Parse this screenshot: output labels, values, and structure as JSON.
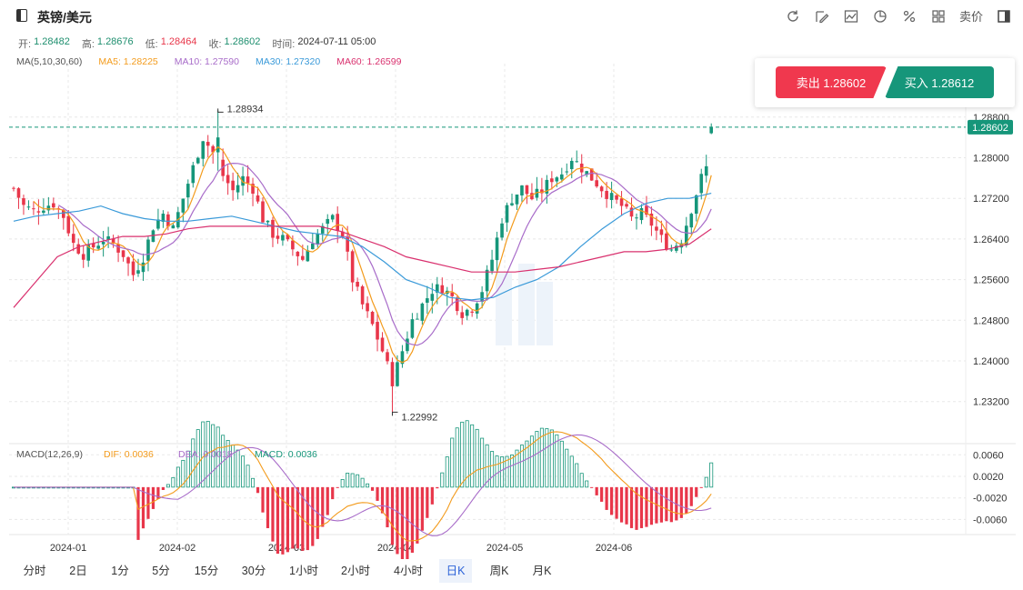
{
  "header": {
    "symbol": "英镑/美元",
    "ohlc": {
      "open_label": "开:",
      "open": "1.28482",
      "high_label": "高:",
      "high": "1.28676",
      "low_label": "低:",
      "low": "1.28464",
      "close_label": "收:",
      "close": "1.28602",
      "time_label": "时间:",
      "time": "2024-07-11 05:00"
    },
    "ma_legend": [
      {
        "label": "MA(5,10,30,60)",
        "color": "#555555"
      },
      {
        "label": "MA5: 1.28225",
        "color": "#f39b1c"
      },
      {
        "label": "MA10: 1.27590",
        "color": "#a86cc9"
      },
      {
        "label": "MA30: 1.27320",
        "color": "#3a9ad9"
      },
      {
        "label": "MA60: 1.26599",
        "color": "#d9306e"
      }
    ],
    "tools": [
      "refresh-icon",
      "draw-icon",
      "chart-type-icon",
      "pie-icon",
      "percent-icon",
      "grid-icon"
    ],
    "sell_price_toggle": "卖价"
  },
  "trade": {
    "sell_label": "卖出 1.28602",
    "buy_label": "买入 1.28612"
  },
  "macd_legend": [
    {
      "label": "MACD(12,26,9)",
      "color": "#555555"
    },
    {
      "label": "DIF: 0.0036",
      "color": "#f39b1c"
    },
    {
      "label": "DEA: 0.0018",
      "color": "#a86cc9"
    },
    {
      "label": "MACD: 0.0036",
      "color": "#16967a"
    }
  ],
  "periods": [
    "分时",
    "2日",
    "1分",
    "5分",
    "15分",
    "30分",
    "1小时",
    "2小时",
    "4小时",
    "日K",
    "周K",
    "月K"
  ],
  "active_period": "日K",
  "chart_data": {
    "type": "candlestick",
    "colors": {
      "up": "#16967a",
      "down": "#e8364a",
      "ma5": "#f39b1c",
      "ma10": "#a86cc9",
      "ma30": "#3a9ad9",
      "ma60": "#d9306e"
    },
    "price_axis": {
      "ticks": [
        1.232,
        1.24,
        1.248,
        1.256,
        1.264,
        1.272,
        1.28,
        1.288
      ],
      "tick_labels": [
        "1.23200",
        "1.24000",
        "1.24800",
        "1.25600",
        "1.26400",
        "1.27200",
        "1.28000",
        "1.28800"
      ]
    },
    "current_price": 1.28602,
    "current_price_label": "1.28602",
    "annotations": [
      {
        "label": "1.28934",
        "value": 1.28934
      },
      {
        "label": "1.22992",
        "value": 1.22992
      }
    ],
    "x_labels": [
      "2024-01",
      "2024-02",
      "2024-03",
      "2024-04",
      "2024-05",
      "2024-06"
    ],
    "macd_axis": {
      "ticks": [
        0.006,
        0.002,
        -0.002,
        -0.006
      ],
      "tick_labels": [
        "0.0060",
        "0.0020",
        "-0.0020",
        "-0.0060"
      ]
    },
    "ma30_approx": [
      1.2675,
      1.2685,
      1.269,
      1.2695,
      1.2705,
      1.269,
      1.268,
      1.2675,
      1.2675,
      1.268,
      1.2685,
      1.2675,
      1.2665,
      1.2655,
      1.265,
      1.2645,
      1.2625,
      1.2595,
      1.256,
      1.2545,
      1.2525,
      1.252,
      1.2525,
      1.2545,
      1.256,
      1.2585,
      1.2625,
      1.266,
      1.269,
      1.271,
      1.272,
      1.272,
      1.273
    ],
    "ma60_approx": [
      1.2505,
      1.2555,
      1.2605,
      1.2625,
      1.2635,
      1.2645,
      1.2645,
      1.265,
      1.266,
      1.2665,
      1.2665,
      1.2665,
      1.2665,
      1.2665,
      1.2665,
      1.2655,
      1.264,
      1.2625,
      1.2605,
      1.2595,
      1.2585,
      1.2575,
      1.2575,
      1.2575,
      1.258,
      1.2585,
      1.2595,
      1.2605,
      1.2615,
      1.2615,
      1.262,
      1.263,
      1.266
    ]
  }
}
